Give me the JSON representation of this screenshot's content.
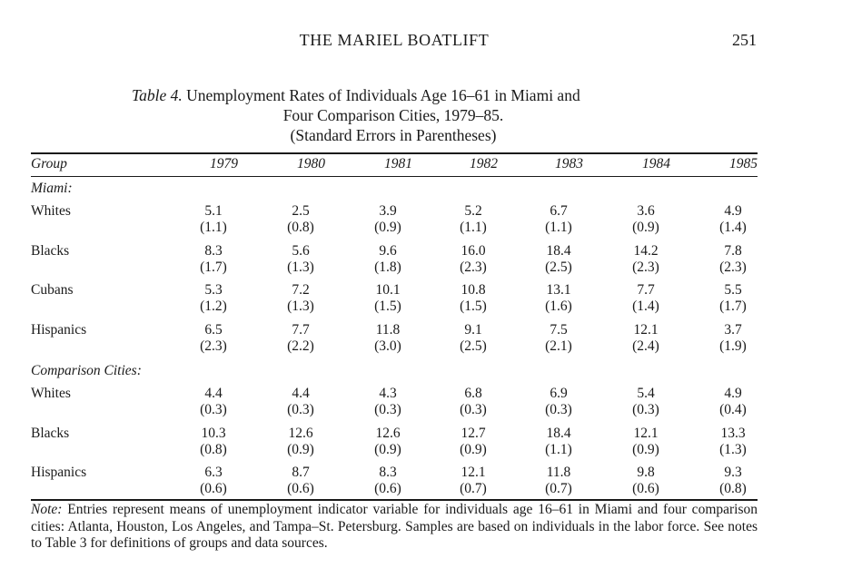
{
  "header": {
    "running_title": "THE MARIEL BOATLIFT",
    "page_number": "251"
  },
  "caption": {
    "label": "Table 4.",
    "line1": "Unemployment Rates of Individuals Age 16–61 in Miami and",
    "line2": "Four Comparison Cities, 1979–85.",
    "line3": "(Standard Errors in Parentheses)"
  },
  "table": {
    "group_header": "Group",
    "years": [
      "1979",
      "1980",
      "1981",
      "1982",
      "1983",
      "1984",
      "1985"
    ],
    "sections": [
      {
        "label": "Miami:",
        "rows": [
          {
            "group": "Whites",
            "est": [
              "5.1",
              "2.5",
              "3.9",
              "5.2",
              "6.7",
              "3.6",
              "4.9"
            ],
            "se": [
              "(1.1)",
              "(0.8)",
              "(0.9)",
              "(1.1)",
              "(1.1)",
              "(0.9)",
              "(1.4)"
            ]
          },
          {
            "group": "Blacks",
            "est": [
              "8.3",
              "5.6",
              "9.6",
              "16.0",
              "18.4",
              "14.2",
              "7.8"
            ],
            "se": [
              "(1.7)",
              "(1.3)",
              "(1.8)",
              "(2.3)",
              "(2.5)",
              "(2.3)",
              "(2.3)"
            ]
          },
          {
            "group": "Cubans",
            "est": [
              "5.3",
              "7.2",
              "10.1",
              "10.8",
              "13.1",
              "7.7",
              "5.5"
            ],
            "se": [
              "(1.2)",
              "(1.3)",
              "(1.5)",
              "(1.5)",
              "(1.6)",
              "(1.4)",
              "(1.7)"
            ]
          },
          {
            "group": "Hispanics",
            "est": [
              "6.5",
              "7.7",
              "11.8",
              "9.1",
              "7.5",
              "12.1",
              "3.7"
            ],
            "se": [
              "(2.3)",
              "(2.2)",
              "(3.0)",
              "(2.5)",
              "(2.1)",
              "(2.4)",
              "(1.9)"
            ]
          }
        ]
      },
      {
        "label": "Comparison Cities:",
        "rows": [
          {
            "group": "Whites",
            "est": [
              "4.4",
              "4.4",
              "4.3",
              "6.8",
              "6.9",
              "5.4",
              "4.9"
            ],
            "se": [
              "(0.3)",
              "(0.3)",
              "(0.3)",
              "(0.3)",
              "(0.3)",
              "(0.3)",
              "(0.4)"
            ]
          },
          {
            "group": "Blacks",
            "est": [
              "10.3",
              "12.6",
              "12.6",
              "12.7",
              "18.4",
              "12.1",
              "13.3"
            ],
            "se": [
              "(0.8)",
              "(0.9)",
              "(0.9)",
              "(0.9)",
              "(1.1)",
              "(0.9)",
              "(1.3)"
            ]
          },
          {
            "group": "Hispanics",
            "est": [
              "6.3",
              "8.7",
              "8.3",
              "12.1",
              "11.8",
              "9.8",
              "9.3"
            ],
            "se": [
              "(0.6)",
              "(0.6)",
              "(0.6)",
              "(0.7)",
              "(0.7)",
              "(0.6)",
              "(0.8)"
            ]
          }
        ]
      }
    ]
  },
  "note": {
    "label": "Note:",
    "text": "Entries represent means of unemployment indicator variable for individuals age 16–61 in Miami and four comparison cities: Atlanta, Houston, Los Angeles, and Tampa–St. Petersburg. Samples are based on individuals in the labor force. See notes to Table 3 for definitions of groups and data sources."
  }
}
